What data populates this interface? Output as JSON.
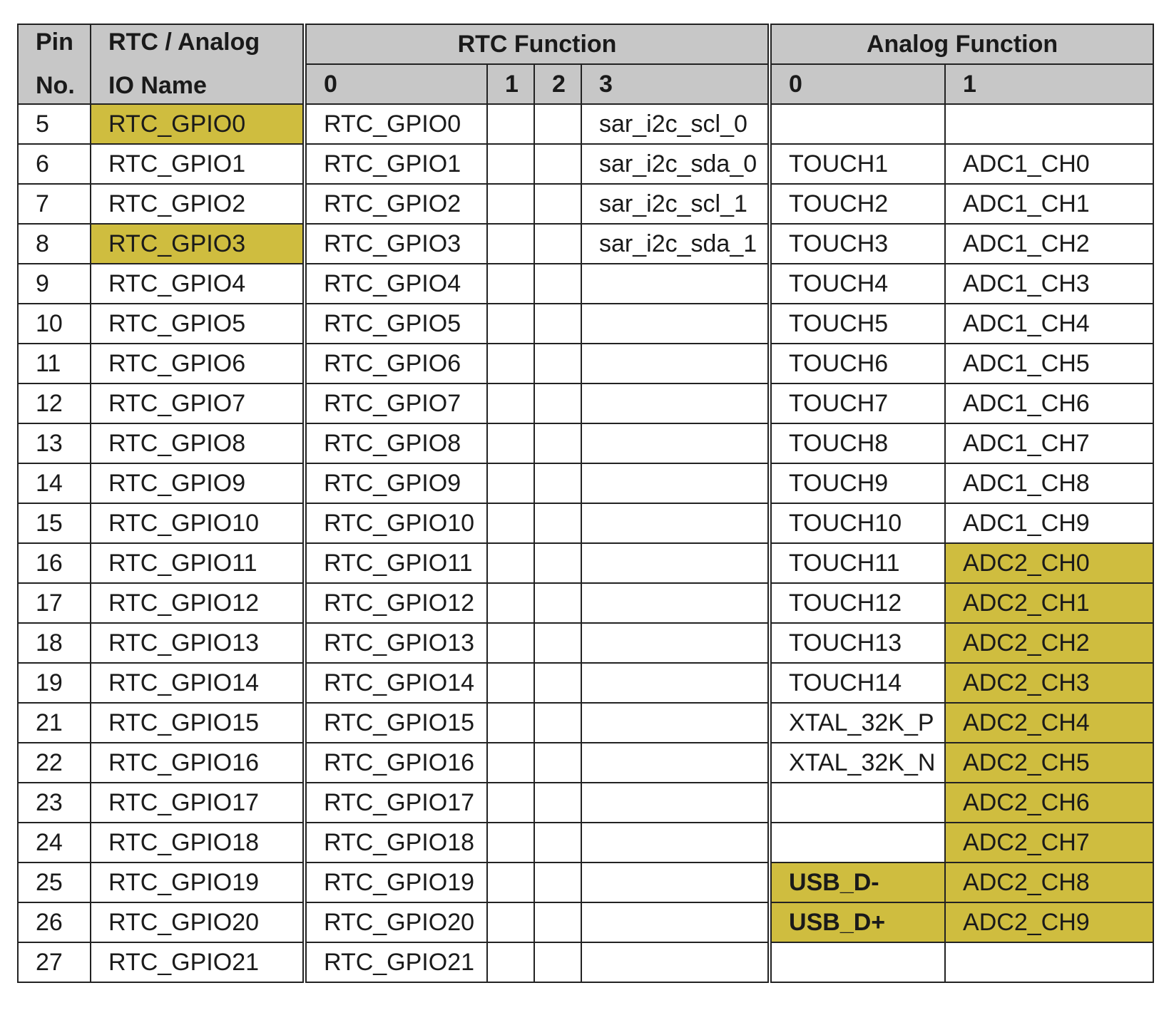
{
  "header": {
    "pin_no_line1": "Pin",
    "pin_no_line2": "No.",
    "io_name_line1": "RTC / Analog",
    "io_name_line2": "IO Name",
    "rtc_function": "RTC Function",
    "analog_function": "Analog Function",
    "rtc_sub": [
      "0",
      "1",
      "2",
      "3"
    ],
    "analog_sub": [
      "0",
      "1"
    ]
  },
  "colors": {
    "header_bg": "#c7c7c7",
    "highlight": "#cfbd3f"
  },
  "rows": [
    {
      "pin": "5",
      "io": "RTC_GPIO0",
      "io_hl": true,
      "rtc0": "RTC_GPIO0",
      "rtc1": "",
      "rtc2": "",
      "rtc3": "sar_i2c_scl_0",
      "an0": "",
      "an0_hl": false,
      "an1": "",
      "an1_hl": false
    },
    {
      "pin": "6",
      "io": "RTC_GPIO1",
      "io_hl": false,
      "rtc0": "RTC_GPIO1",
      "rtc1": "",
      "rtc2": "",
      "rtc3": "sar_i2c_sda_0",
      "an0": "TOUCH1",
      "an0_hl": false,
      "an1": "ADC1_CH0",
      "an1_hl": false
    },
    {
      "pin": "7",
      "io": "RTC_GPIO2",
      "io_hl": false,
      "rtc0": "RTC_GPIO2",
      "rtc1": "",
      "rtc2": "",
      "rtc3": "sar_i2c_scl_1",
      "an0": "TOUCH2",
      "an0_hl": false,
      "an1": "ADC1_CH1",
      "an1_hl": false
    },
    {
      "pin": "8",
      "io": "RTC_GPIO3",
      "io_hl": true,
      "rtc0": "RTC_GPIO3",
      "rtc1": "",
      "rtc2": "",
      "rtc3": "sar_i2c_sda_1",
      "an0": "TOUCH3",
      "an0_hl": false,
      "an1": "ADC1_CH2",
      "an1_hl": false
    },
    {
      "pin": "9",
      "io": "RTC_GPIO4",
      "io_hl": false,
      "rtc0": "RTC_GPIO4",
      "rtc1": "",
      "rtc2": "",
      "rtc3": "",
      "an0": "TOUCH4",
      "an0_hl": false,
      "an1": "ADC1_CH3",
      "an1_hl": false
    },
    {
      "pin": "10",
      "io": "RTC_GPIO5",
      "io_hl": false,
      "rtc0": "RTC_GPIO5",
      "rtc1": "",
      "rtc2": "",
      "rtc3": "",
      "an0": "TOUCH5",
      "an0_hl": false,
      "an1": "ADC1_CH4",
      "an1_hl": false
    },
    {
      "pin": "11",
      "io": "RTC_GPIO6",
      "io_hl": false,
      "rtc0": "RTC_GPIO6",
      "rtc1": "",
      "rtc2": "",
      "rtc3": "",
      "an0": "TOUCH6",
      "an0_hl": false,
      "an1": "ADC1_CH5",
      "an1_hl": false
    },
    {
      "pin": "12",
      "io": "RTC_GPIO7",
      "io_hl": false,
      "rtc0": "RTC_GPIO7",
      "rtc1": "",
      "rtc2": "",
      "rtc3": "",
      "an0": "TOUCH7",
      "an0_hl": false,
      "an1": "ADC1_CH6",
      "an1_hl": false
    },
    {
      "pin": "13",
      "io": "RTC_GPIO8",
      "io_hl": false,
      "rtc0": "RTC_GPIO8",
      "rtc1": "",
      "rtc2": "",
      "rtc3": "",
      "an0": "TOUCH8",
      "an0_hl": false,
      "an1": "ADC1_CH7",
      "an1_hl": false
    },
    {
      "pin": "14",
      "io": "RTC_GPIO9",
      "io_hl": false,
      "rtc0": "RTC_GPIO9",
      "rtc1": "",
      "rtc2": "",
      "rtc3": "",
      "an0": "TOUCH9",
      "an0_hl": false,
      "an1": "ADC1_CH8",
      "an1_hl": false
    },
    {
      "pin": "15",
      "io": "RTC_GPIO10",
      "io_hl": false,
      "rtc0": "RTC_GPIO10",
      "rtc1": "",
      "rtc2": "",
      "rtc3": "",
      "an0": "TOUCH10",
      "an0_hl": false,
      "an1": "ADC1_CH9",
      "an1_hl": false
    },
    {
      "pin": "16",
      "io": "RTC_GPIO11",
      "io_hl": false,
      "rtc0": "RTC_GPIO11",
      "rtc1": "",
      "rtc2": "",
      "rtc3": "",
      "an0": "TOUCH11",
      "an0_hl": false,
      "an1": "ADC2_CH0",
      "an1_hl": true
    },
    {
      "pin": "17",
      "io": "RTC_GPIO12",
      "io_hl": false,
      "rtc0": "RTC_GPIO12",
      "rtc1": "",
      "rtc2": "",
      "rtc3": "",
      "an0": "TOUCH12",
      "an0_hl": false,
      "an1": "ADC2_CH1",
      "an1_hl": true
    },
    {
      "pin": "18",
      "io": "RTC_GPIO13",
      "io_hl": false,
      "rtc0": "RTC_GPIO13",
      "rtc1": "",
      "rtc2": "",
      "rtc3": "",
      "an0": "TOUCH13",
      "an0_hl": false,
      "an1": "ADC2_CH2",
      "an1_hl": true
    },
    {
      "pin": "19",
      "io": "RTC_GPIO14",
      "io_hl": false,
      "rtc0": "RTC_GPIO14",
      "rtc1": "",
      "rtc2": "",
      "rtc3": "",
      "an0": "TOUCH14",
      "an0_hl": false,
      "an1": "ADC2_CH3",
      "an1_hl": true
    },
    {
      "pin": "21",
      "io": "RTC_GPIO15",
      "io_hl": false,
      "rtc0": "RTC_GPIO15",
      "rtc1": "",
      "rtc2": "",
      "rtc3": "",
      "an0": "XTAL_32K_P",
      "an0_hl": false,
      "an1": "ADC2_CH4",
      "an1_hl": true
    },
    {
      "pin": "22",
      "io": "RTC_GPIO16",
      "io_hl": false,
      "rtc0": "RTC_GPIO16",
      "rtc1": "",
      "rtc2": "",
      "rtc3": "",
      "an0": "XTAL_32K_N",
      "an0_hl": false,
      "an1": "ADC2_CH5",
      "an1_hl": true
    },
    {
      "pin": "23",
      "io": "RTC_GPIO17",
      "io_hl": false,
      "rtc0": "RTC_GPIO17",
      "rtc1": "",
      "rtc2": "",
      "rtc3": "",
      "an0": "",
      "an0_hl": false,
      "an1": "ADC2_CH6",
      "an1_hl": true
    },
    {
      "pin": "24",
      "io": "RTC_GPIO18",
      "io_hl": false,
      "rtc0": "RTC_GPIO18",
      "rtc1": "",
      "rtc2": "",
      "rtc3": "",
      "an0": "",
      "an0_hl": false,
      "an1": "ADC2_CH7",
      "an1_hl": true
    },
    {
      "pin": "25",
      "io": "RTC_GPIO19",
      "io_hl": false,
      "rtc0": "RTC_GPIO19",
      "rtc1": "",
      "rtc2": "",
      "rtc3": "",
      "an0": "USB_D-",
      "an0_hl": true,
      "an1": "ADC2_CH8",
      "an1_hl": true
    },
    {
      "pin": "26",
      "io": "RTC_GPIO20",
      "io_hl": false,
      "rtc0": "RTC_GPIO20",
      "rtc1": "",
      "rtc2": "",
      "rtc3": "",
      "an0": "USB_D+",
      "an0_hl": true,
      "an1": "ADC2_CH9",
      "an1_hl": true
    },
    {
      "pin": "27",
      "io": "RTC_GPIO21",
      "io_hl": false,
      "rtc0": "RTC_GPIO21",
      "rtc1": "",
      "rtc2": "",
      "rtc3": "",
      "an0": "",
      "an0_hl": false,
      "an1": "",
      "an1_hl": false
    }
  ]
}
